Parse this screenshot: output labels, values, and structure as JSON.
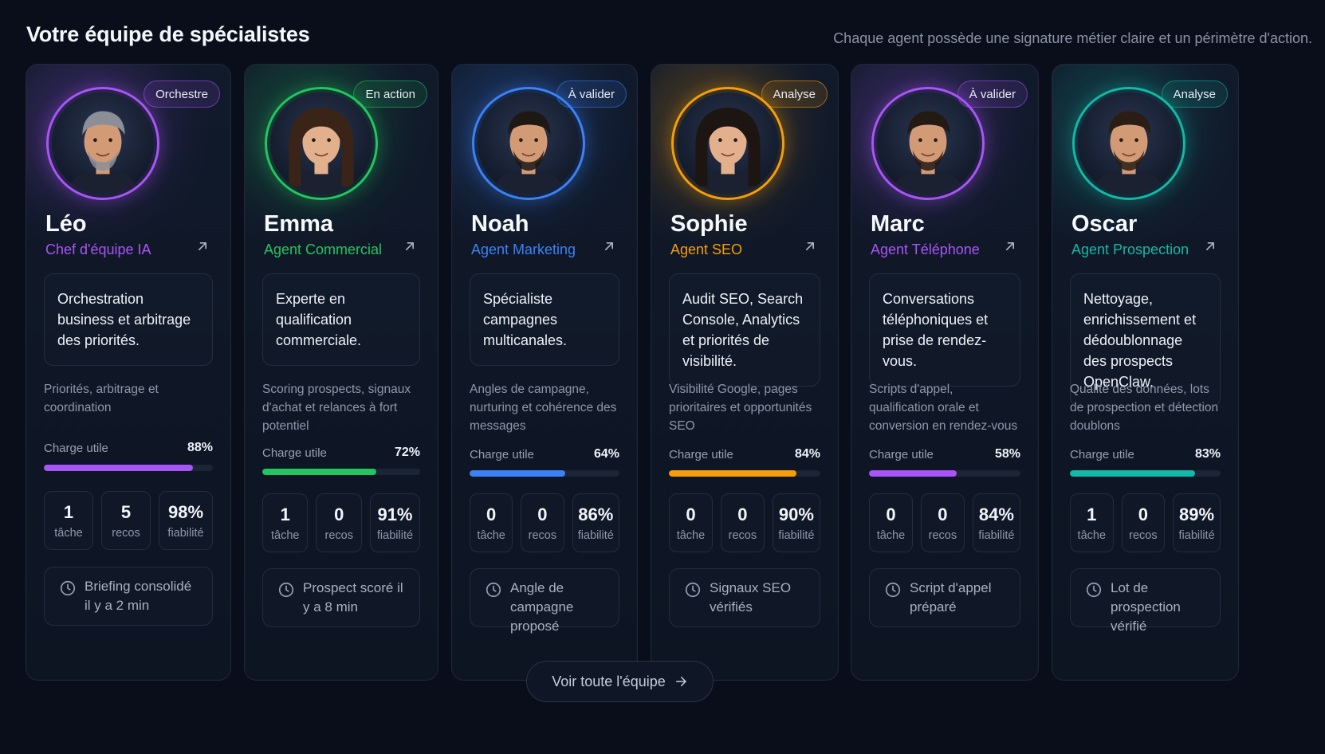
{
  "header": {
    "title": "Votre équipe de spécialistes",
    "subtitle": "Chaque agent possède une signature métier claire et un périmètre d'action."
  },
  "cards": [
    {
      "name": "Léo",
      "role": "Chef d'équipe IA",
      "badge": "Orchestre",
      "accent": "#a855f7",
      "summary": "Orchestration business et arbitrage des priorités.",
      "detail": "Priorités, arbitrage et coordination",
      "load_label": "Charge utile",
      "load_value": "88%",
      "load_fraction": 0.88,
      "stats": [
        {
          "value": "1",
          "label": "tâche"
        },
        {
          "value": "5",
          "label": "recos"
        },
        {
          "value": "98%",
          "label": "fiabilité"
        }
      ],
      "activity": "Briefing consolidé il y a 2 min",
      "avatar_hair": "#3b3f47",
      "avatar_gray": true,
      "avatar_female": false
    },
    {
      "name": "Emma",
      "role": "Agent Commercial",
      "badge": "En action",
      "accent": "#22c55e",
      "summary": "Experte en qualification commerciale.",
      "detail": "Scoring prospects, signaux d'achat et relances à fort potentiel",
      "load_label": "Charge utile",
      "load_value": "72%",
      "load_fraction": 0.72,
      "stats": [
        {
          "value": "1",
          "label": "tâche"
        },
        {
          "value": "0",
          "label": "recos"
        },
        {
          "value": "91%",
          "label": "fiabilité"
        }
      ],
      "activity": "Prospect scoré il y a 8 min",
      "avatar_hair": "#3a2418",
      "avatar_gray": false,
      "avatar_female": true
    },
    {
      "name": "Noah",
      "role": "Agent Marketing",
      "badge": "À valider",
      "accent": "#3b82f6",
      "summary": "Spécialiste campagnes multicanales.",
      "detail": "Angles de campagne, nurturing et cohérence des messages",
      "load_label": "Charge utile",
      "load_value": "64%",
      "load_fraction": 0.64,
      "stats": [
        {
          "value": "0",
          "label": "tâche"
        },
        {
          "value": "0",
          "label": "recos"
        },
        {
          "value": "86%",
          "label": "fiabilité"
        }
      ],
      "activity": "Angle de campagne proposé",
      "avatar_hair": "#1d1814",
      "avatar_gray": false,
      "avatar_female": false
    },
    {
      "name": "Sophie",
      "role": "Agent SEO",
      "badge": "Analyse",
      "accent": "#f59e0b",
      "summary": "Audit SEO, Search Console, Analytics et priorités de visibilité.",
      "detail": "Visibilité Google, pages prioritaires et opportunités SEO",
      "load_label": "Charge utile",
      "load_value": "84%",
      "load_fraction": 0.84,
      "stats": [
        {
          "value": "0",
          "label": "tâche"
        },
        {
          "value": "0",
          "label": "recos"
        },
        {
          "value": "90%",
          "label": "fiabilité"
        }
      ],
      "activity": "Signaux SEO vérifiés",
      "avatar_hair": "#1c1512",
      "avatar_gray": false,
      "avatar_female": true
    },
    {
      "name": "Marc",
      "role": "Agent Téléphone",
      "badge": "À valider",
      "accent": "#a855f7",
      "summary": "Conversations téléphoniques et prise de rendez-vous.",
      "detail": "Scripts d'appel, qualification orale et conversion en rendez-vous",
      "load_label": "Charge utile",
      "load_value": "58%",
      "load_fraction": 0.58,
      "stats": [
        {
          "value": "0",
          "label": "tâche"
        },
        {
          "value": "0",
          "label": "recos"
        },
        {
          "value": "84%",
          "label": "fiabilité"
        }
      ],
      "activity": "Script d'appel préparé",
      "avatar_hair": "#241a14",
      "avatar_gray": false,
      "avatar_female": false
    },
    {
      "name": "Oscar",
      "role": "Agent Prospection",
      "badge": "Analyse",
      "accent": "#14b8a6",
      "summary": "Nettoyage, enrichissement et dédoublonnage des prospects OpenClaw.",
      "detail": "Qualité des données, lots de prospection et détection doublons",
      "load_label": "Charge utile",
      "load_value": "83%",
      "load_fraction": 0.83,
      "stats": [
        {
          "value": "1",
          "label": "tâche"
        },
        {
          "value": "0",
          "label": "recos"
        },
        {
          "value": "89%",
          "label": "fiabilité"
        }
      ],
      "activity": "Lot de prospection vérifié",
      "avatar_hair": "#2a1d15",
      "avatar_gray": false,
      "avatar_female": false
    }
  ],
  "team_button": {
    "label": "Voir toute l'équipe",
    "icon": "arrow-right-icon"
  },
  "colors": {
    "background": "#090e1a",
    "card_border": "#1f2838",
    "muted_text": "#8f98aa"
  }
}
